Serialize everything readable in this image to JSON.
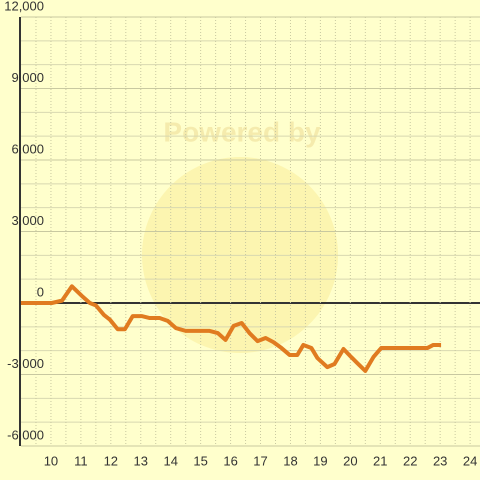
{
  "chart_data": {
    "type": "line",
    "watermark": "Powered by",
    "x": [
      9,
      10.03,
      10.37,
      10.7,
      11.03,
      11.3,
      11.5,
      11.77,
      11.97,
      12.23,
      12.47,
      12.73,
      13.03,
      13.3,
      13.63,
      13.9,
      14.17,
      14.5,
      14.83,
      15.3,
      15.57,
      15.83,
      16.1,
      16.37,
      16.63,
      16.9,
      17.17,
      17.43,
      17.7,
      17.97,
      18.23,
      18.43,
      18.7,
      18.9,
      19.23,
      19.47,
      19.77,
      20.03,
      20.23,
      20.5,
      20.77,
      21.03,
      21.57,
      22.3,
      22.57,
      22.77,
      23.03
    ],
    "series": [
      {
        "color": "#e07b20",
        "values": [
          0,
          0,
          100,
          700,
          300,
          0,
          -100,
          -500,
          -700,
          -1100,
          -1100,
          -550,
          -550,
          -630,
          -630,
          -750,
          -1050,
          -1170,
          -1170,
          -1170,
          -1260,
          -1550,
          -960,
          -840,
          -1260,
          -1600,
          -1470,
          -1640,
          -1890,
          -2180,
          -2180,
          -1760,
          -1890,
          -2310,
          -2690,
          -2560,
          -1930,
          -2270,
          -2520,
          -2850,
          -2270,
          -1890,
          -1890,
          -1890,
          -1890,
          -1760,
          -1760
        ]
      }
    ],
    "xlim": [
      9,
      24.33
    ],
    "ylim": [
      -6000,
      12000
    ],
    "xticks": [
      10,
      11,
      12,
      13,
      14,
      15,
      16,
      17,
      18,
      19,
      20,
      21,
      22,
      23,
      24
    ],
    "yticks": [
      {
        "value": -6000,
        "label": "-6,000"
      },
      {
        "value": -3000,
        "label": "-3,000"
      },
      0,
      {
        "value": 3000,
        "label": "3,000"
      },
      {
        "value": 6000,
        "label": "6,000"
      },
      {
        "value": 9000,
        "label": "9,000"
      },
      {
        "value": 12000,
        "label": "12,000"
      }
    ],
    "grid": true,
    "x_minor_divisions": 2,
    "y_minor_divisions": 3
  }
}
